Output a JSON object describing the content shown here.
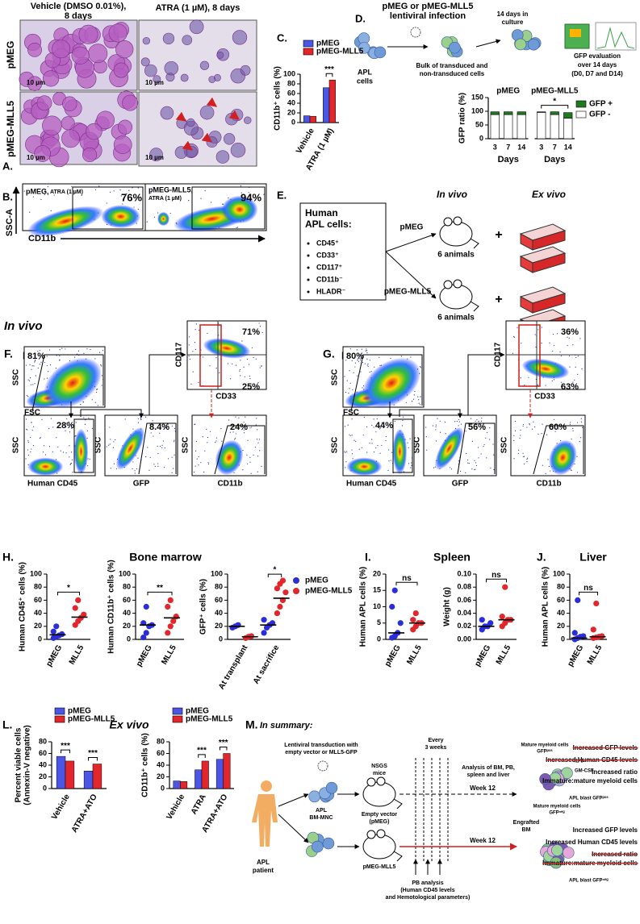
{
  "panels": {
    "A": {
      "label": "A.",
      "col_headers": [
        [
          "Vehicle (DMSO 0.01%),",
          "8 days"
        ],
        [
          "ATRA (1 µM), 8 days"
        ]
      ],
      "row_labels": [
        "pMEG",
        "pMEG-MLL5"
      ],
      "scale_bars": [
        "10 µm",
        "10 µm",
        "10 µm",
        "10 µm"
      ]
    },
    "B": {
      "label": "B.",
      "plots": [
        {
          "title": "pMEG,",
          "subtitle": "ATRA (1 µM)",
          "gate": "76%"
        },
        {
          "title": "pMEG-MLL5,",
          "subtitle": "ATRA (1 µM)",
          "gate": "94%"
        }
      ],
      "y_axis": "SSC-A",
      "x_axis": "CD11b"
    },
    "C": {
      "label": "C."
    },
    "D": {
      "label": "D.",
      "title": [
        "pMEG or pMEG-MLL5",
        "lentiviral infection"
      ],
      "cells": [
        "APL",
        "cells"
      ],
      "bulk": [
        "Bulk of transduced and",
        "non-transduced cells"
      ],
      "culture": [
        "14 days in",
        "culture"
      ],
      "evaluation": [
        "GFP evaluation",
        "over 14 days",
        "(D0, D7 and D14)"
      ]
    },
    "E": {
      "label": "E.",
      "box_title": [
        "Human",
        "APL cells:"
      ],
      "markers": [
        "CD45⁺",
        "CD33⁺",
        "CD117⁺",
        "CD11b⁻",
        "HLADR⁻"
      ],
      "in_vivo": "In vivo",
      "ex_vivo": "Ex vivo",
      "groups": [
        "pMEG",
        "pMEG-MLL5"
      ],
      "animals": [
        "6 animals",
        "6 animals"
      ],
      "plus": [
        "+",
        "+"
      ]
    },
    "in_vivo": "In vivo",
    "F": {
      "label": "F.",
      "title": "pMEG",
      "gates": [
        "81%",
        "71%",
        "25%",
        "28%",
        "8.4%",
        "24%"
      ]
    },
    "G": {
      "label": "G.",
      "title": "pMEG-MLL5",
      "gates": [
        "80%",
        "36%",
        "63%",
        "44%",
        "56%",
        "60%"
      ]
    },
    "flow_axes": {
      "ssc": "SSC",
      "fsc": "FSC",
      "cd117": "CD117",
      "cd33": "CD33",
      "cd45": "Human CD45",
      "gfp": "GFP",
      "cd11b": "CD11b"
    },
    "H": {
      "label": "H.",
      "title": "Bone marrow"
    },
    "I": {
      "label": "I.",
      "title": "Spleen"
    },
    "J": {
      "label": "J.",
      "title": "Liver"
    },
    "L": {
      "label": "L.",
      "title": "Ex vivo"
    },
    "M": {
      "label": "M.",
      "title": "In summary:",
      "transduction": [
        "Lentiviral transduction with",
        "empty vector or MLL5-GFP"
      ],
      "mice": [
        "NSGS",
        "mice"
      ],
      "every": [
        "Every",
        "3 weeks"
      ],
      "analysis": [
        "Analysis of BM, PB,",
        "spleen and liver"
      ],
      "mnc": [
        "APL",
        "BM-MNC"
      ],
      "empty": [
        "Empty vector",
        "(pMEG)"
      ],
      "mll5": "pMEG-MLL5",
      "weeks": [
        "Week 12",
        "Week 12"
      ],
      "patient": [
        "APL",
        "patient"
      ],
      "pb": [
        "PB analysis",
        "(Human CD45 levels",
        "and Hemotological parameters)"
      ],
      "mature_pos": [
        "Mature myeloid cells",
        "GFPᵖᵒˢ"
      ],
      "il3": "IL-3",
      "gmcsf": "GM-CSF",
      "blast_pos": "APL blast GFPᵖᵒˢ",
      "mature_neg": [
        "Mature myeloid cells",
        "GFPⁿᵉᵍ"
      ],
      "engrafted": [
        "Engrafted",
        "BM"
      ],
      "blast_neg": "APL blast GFPⁿᵉᵍ",
      "outcomes_top": [
        {
          "lines": [
            "Increased GFP levels"
          ],
          "struck": true
        },
        {
          "lines": [
            "Increased Human CD45 levels"
          ],
          "struck": true
        },
        {
          "lines": [
            "Increased ratio",
            "Immature:mature myeloid cells"
          ],
          "struck": false
        }
      ],
      "outcomes_bottom": [
        {
          "lines": [
            "Increased GFP levels"
          ],
          "struck": false
        },
        {
          "lines": [
            "Increased Human CD45 levels"
          ],
          "struck": false
        },
        {
          "lines": [
            "Increased ratio",
            "Immature:mature myeloid cells"
          ],
          "struck": true
        }
      ]
    }
  },
  "chart_data": [
    {
      "type": "bar",
      "ylabel": "CD11b⁺ cells (%)",
      "categories": [
        "Vehicle",
        "ATRA (1 µM)"
      ],
      "series": [
        {
          "name": "pMEG",
          "color": "#4b55e6",
          "values": [
            14,
            72
          ]
        },
        {
          "name": "pMEG-MLL5",
          "color": "#e3262b",
          "values": [
            13,
            88
          ]
        }
      ],
      "annotations": [
        null,
        "***"
      ],
      "ylim": [
        0,
        100
      ],
      "yticks": [
        0,
        20,
        40,
        60,
        80,
        100
      ],
      "legend": "top"
    },
    {
      "type": "stacked_bar",
      "ylabel": "GFP ratio (%)",
      "groups": [
        "pMEG",
        "pMEG-MLL5"
      ],
      "categories": [
        "3",
        "7",
        "14",
        "3",
        "7",
        "14"
      ],
      "xlabel": "Days",
      "series": [
        {
          "name": "GFP +",
          "color": "#1f7a1f",
          "values": [
            10,
            10,
            10,
            2,
            10,
            20
          ]
        },
        {
          "name": "GFP -",
          "color": "#ffffff",
          "values": [
            88,
            88,
            88,
            96,
            88,
            75
          ]
        }
      ],
      "annotations": [
        null,
        "*"
      ],
      "ylim": [
        0,
        150
      ],
      "yticks": [
        0,
        50,
        100,
        150
      ],
      "legend": "right"
    },
    {
      "type": "dot",
      "ylabel": "Human CD45⁺ cells (%)",
      "categories": [
        "pMEG",
        "MLL5"
      ],
      "colors": [
        "#2a2ed8",
        "#e3262b"
      ],
      "values": [
        [
          2,
          4,
          6,
          8,
          12,
          20
        ],
        [
          22,
          28,
          33,
          38,
          48,
          60
        ]
      ],
      "medians": [
        7,
        34
      ],
      "annotation": "*",
      "ylim": [
        0,
        100
      ],
      "yticks": [
        0,
        20,
        40,
        60,
        80,
        100
      ]
    },
    {
      "type": "dot",
      "ylabel": "Human CD11b⁺ cells (%)",
      "categories": [
        "pMEG",
        "MLL5"
      ],
      "colors": [
        "#2a2ed8",
        "#e3262b"
      ],
      "values": [
        [
          3,
          10,
          20,
          22,
          25,
          50
        ],
        [
          10,
          20,
          28,
          35,
          50,
          60
        ]
      ],
      "medians": [
        22,
        33
      ],
      "annotation": "**",
      "ylim": [
        0,
        100
      ],
      "yticks": [
        0,
        20,
        40,
        60,
        80,
        100
      ]
    },
    {
      "type": "dot",
      "ylabel": "GFP⁺ cells (%)",
      "categories": [
        "At transplant",
        "At sacrifice"
      ],
      "series": [
        {
          "name": "pMEG",
          "color": "#2a2ed8",
          "values": [
            [
              18,
              20,
              22
            ],
            [
              10,
              18,
              22,
              25,
              30
            ]
          ],
          "medians": [
            20,
            22
          ]
        },
        {
          "name": "pMEG-MLL5",
          "color": "#e3262b",
          "values": [
            [
              2,
              4,
              5
            ],
            [
              40,
              50,
              60,
              72,
              78,
              85,
              90
            ]
          ],
          "medians": [
            4,
            63
          ]
        }
      ],
      "annotations": [
        null,
        "*"
      ],
      "ylim": [
        0,
        100
      ],
      "yticks": [
        0,
        20,
        40,
        60,
        80,
        100
      ],
      "legend": "right"
    },
    {
      "type": "dot",
      "ylabel": "Human APL cells (%)",
      "categories": [
        "pMEG",
        "MLL5"
      ],
      "colors": [
        "#2a2ed8",
        "#e3262b"
      ],
      "values": [
        [
          0.5,
          1,
          2,
          5,
          10,
          15
        ],
        [
          3,
          4,
          5,
          5,
          6,
          8
        ]
      ],
      "medians": [
        2,
        5
      ],
      "annotation": "ns",
      "ylim": [
        0,
        20
      ],
      "yticks": [
        0,
        5,
        10,
        15,
        20
      ]
    },
    {
      "type": "dot",
      "ylabel": "Weight (g)",
      "categories": [
        "pMEG",
        "MLL5"
      ],
      "colors": [
        "#2a2ed8",
        "#e3262b"
      ],
      "values": [
        [
          0.015,
          0.02,
          0.02,
          0.025,
          0.03
        ],
        [
          0.02,
          0.025,
          0.03,
          0.03,
          0.035,
          0.08
        ]
      ],
      "medians": [
        0.02,
        0.03
      ],
      "annotation": "ns",
      "ylim": [
        0,
        0.1
      ],
      "yticks": [
        {
          "value": 0,
          "label": "0.00"
        },
        0.02,
        0.04,
        0.06,
        0.08,
        {
          "value": 0.1,
          "label": "0.10"
        }
      ]
    },
    {
      "type": "dot",
      "ylabel": "Human APL cells (%)",
      "categories": [
        "pMEG",
        "MLL5"
      ],
      "colors": [
        "#2a2ed8",
        "#e3262b"
      ],
      "values": [
        [
          0,
          2,
          4,
          5,
          10,
          60
        ],
        [
          2,
          3,
          4,
          5,
          15,
          55
        ]
      ],
      "medians": [
        2,
        4
      ],
      "annotation": "ns",
      "ylim": [
        0,
        100
      ],
      "yticks": [
        0,
        20,
        40,
        60,
        80,
        100
      ]
    },
    {
      "type": "bar",
      "ylabel": [
        "Percent viable cells",
        "(Annexin-V negative)"
      ],
      "categories": [
        "Vehicle",
        "ATRA+ATO"
      ],
      "series": [
        {
          "name": "pMEG",
          "color": "#4b55e6",
          "values": [
            55,
            30
          ]
        },
        {
          "name": "pMEG-MLL5",
          "color": "#e3262b",
          "values": [
            47,
            42
          ]
        }
      ],
      "annotations": [
        "***",
        "***"
      ],
      "ylim": [
        0,
        80
      ],
      "yticks": [
        0,
        20,
        40,
        60,
        80
      ],
      "legend": "top"
    },
    {
      "type": "bar",
      "ylabel": "CD11b⁺ cells (%)",
      "categories": [
        "Vehicle",
        "ATRA",
        "ATRA+ATO"
      ],
      "series": [
        {
          "name": "pMEG",
          "color": "#4b55e6",
          "values": [
            13,
            32,
            50
          ]
        },
        {
          "name": "pMEG-MLL5",
          "color": "#e3262b",
          "values": [
            12,
            47,
            60
          ]
        }
      ],
      "annotations": [
        null,
        "***",
        "***"
      ],
      "ylim": [
        0,
        80
      ],
      "yticks": [
        0,
        20,
        40,
        60,
        80
      ],
      "legend": "top"
    }
  ]
}
